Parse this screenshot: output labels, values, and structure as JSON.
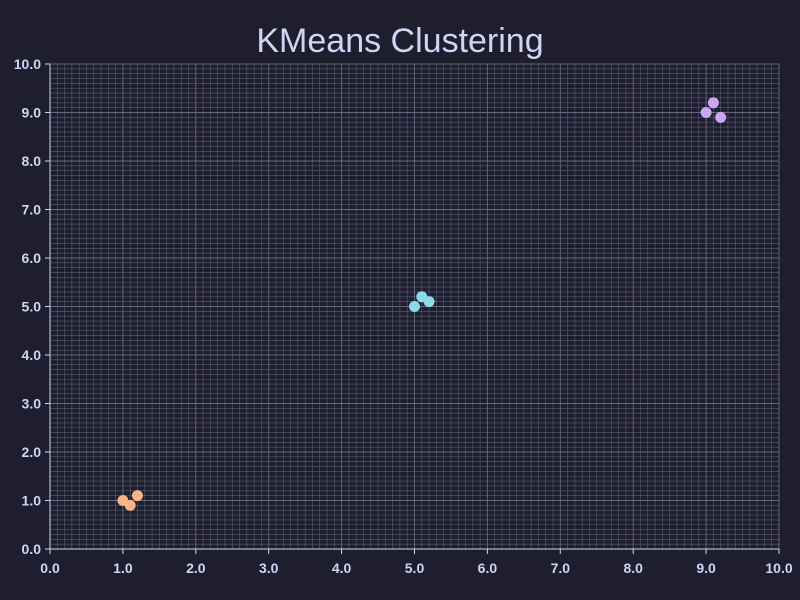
{
  "theme": {
    "background": "#1e1e2e",
    "text_color": "#cdd6f4",
    "grid_color": "#6c7086"
  },
  "chart_data": {
    "type": "scatter",
    "title": "KMeans Clustering",
    "xlabel": "",
    "ylabel": "",
    "xlim": [
      0,
      10
    ],
    "ylim": [
      0,
      10
    ],
    "xticks": [
      "0.0",
      "1.0",
      "2.0",
      "3.0",
      "4.0",
      "5.0",
      "6.0",
      "7.0",
      "8.0",
      "9.0",
      "10.0"
    ],
    "yticks": [
      "0.0",
      "1.0",
      "2.0",
      "3.0",
      "4.0",
      "5.0",
      "6.0",
      "7.0",
      "8.0",
      "9.0",
      "10.0"
    ],
    "grid": true,
    "legend": "none",
    "series": [
      {
        "color": "#fab387",
        "points": [
          [
            1.0,
            1.0
          ],
          [
            1.1,
            0.9
          ],
          [
            1.2,
            1.1
          ]
        ]
      },
      {
        "color": "#89dceb",
        "points": [
          [
            5.0,
            5.0
          ],
          [
            5.1,
            5.2
          ],
          [
            5.2,
            5.1
          ]
        ]
      },
      {
        "color": "#cba6f7",
        "points": [
          [
            9.0,
            9.0
          ],
          [
            9.1,
            9.2
          ],
          [
            9.2,
            8.9
          ]
        ]
      }
    ]
  }
}
